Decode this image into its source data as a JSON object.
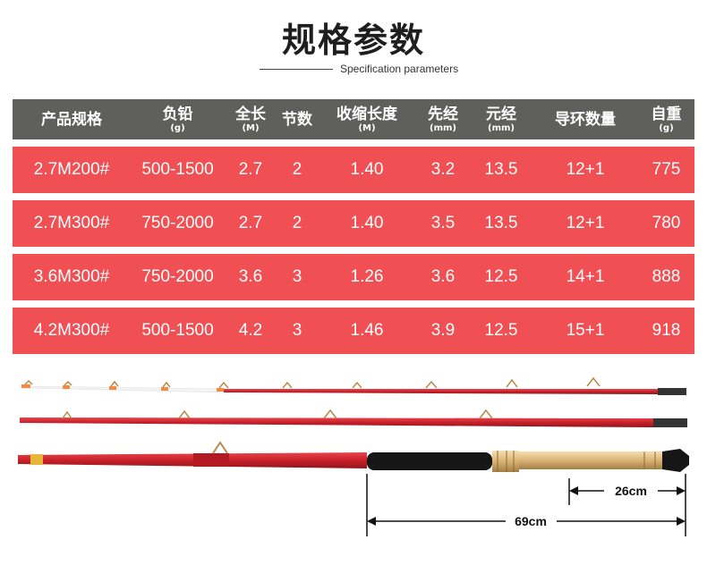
{
  "title": "规格参数",
  "subtitle": "Specification parameters",
  "table": {
    "headers": [
      {
        "label": "产品规格",
        "unit": ""
      },
      {
        "label": "负铅",
        "unit": "(g)"
      },
      {
        "label": "全长",
        "unit": "(M)"
      },
      {
        "label": "节数",
        "unit": ""
      },
      {
        "label": "收缩长度",
        "unit": "(M)"
      },
      {
        "label": "先经",
        "unit": "(mm)"
      },
      {
        "label": "元经",
        "unit": "(mm)"
      },
      {
        "label": "导环数量",
        "unit": ""
      },
      {
        "label": "自重",
        "unit": "(g)"
      }
    ],
    "rows": [
      [
        "2.7M200#",
        "500-1500",
        "2.7",
        "2",
        "1.40",
        "3.2",
        "13.5",
        "12+1",
        "775"
      ],
      [
        "2.7M300#",
        "750-2000",
        "2.7",
        "2",
        "1.40",
        "3.5",
        "13.5",
        "12+1",
        "780"
      ],
      [
        "3.6M300#",
        "750-2000",
        "3.6",
        "3",
        "1.26",
        "3.6",
        "12.5",
        "14+1",
        "888"
      ],
      [
        "4.2M300#",
        "500-1500",
        "4.2",
        "3",
        "1.46",
        "3.9",
        "12.5",
        "15+1",
        "918"
      ]
    ]
  },
  "dimensions": {
    "handle_length": "26cm",
    "grip_length": "69cm"
  },
  "colors": {
    "header_bg": "#5f605c",
    "row_bg": "#f04f54",
    "rod_red": "#c8202a"
  }
}
